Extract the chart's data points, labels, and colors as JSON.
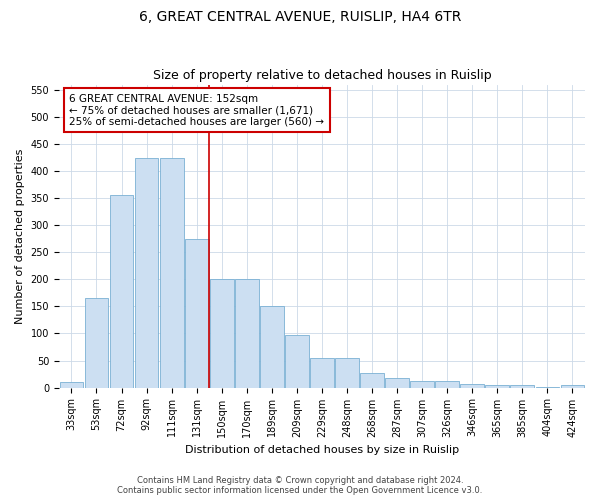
{
  "title": "6, GREAT CENTRAL AVENUE, RUISLIP, HA4 6TR",
  "subtitle": "Size of property relative to detached houses in Ruislip",
  "xlabel": "Distribution of detached houses by size in Ruislip",
  "ylabel": "Number of detached properties",
  "categories": [
    "33sqm",
    "53sqm",
    "72sqm",
    "92sqm",
    "111sqm",
    "131sqm",
    "150sqm",
    "170sqm",
    "189sqm",
    "209sqm",
    "229sqm",
    "248sqm",
    "268sqm",
    "287sqm",
    "307sqm",
    "326sqm",
    "346sqm",
    "365sqm",
    "385sqm",
    "404sqm",
    "424sqm"
  ],
  "values": [
    10,
    165,
    355,
    425,
    425,
    275,
    200,
    200,
    150,
    97,
    55,
    55,
    27,
    18,
    12,
    12,
    6,
    4,
    4,
    1,
    4
  ],
  "bar_color": "#ccdff2",
  "bar_edge_color": "#7ab0d4",
  "red_line_x": 5.5,
  "annotation_line1": "6 GREAT CENTRAL AVENUE: 152sqm",
  "annotation_line2": "← 75% of detached houses are smaller (1,671)",
  "annotation_line3": "25% of semi-detached houses are larger (560) →",
  "annotation_box_color": "#ffffff",
  "annotation_box_edge": "#cc0000",
  "ylim_max": 560,
  "yticks": [
    0,
    50,
    100,
    150,
    200,
    250,
    300,
    350,
    400,
    450,
    500,
    550
  ],
  "footer_line1": "Contains HM Land Registry data © Crown copyright and database right 2024.",
  "footer_line2": "Contains public sector information licensed under the Open Government Licence v3.0.",
  "background_color": "#ffffff",
  "grid_color": "#ccd9e8",
  "title_fontsize": 10,
  "subtitle_fontsize": 9,
  "axis_label_fontsize": 8,
  "tick_fontsize": 7,
  "annotation_fontsize": 7.5,
  "footer_fontsize": 6
}
